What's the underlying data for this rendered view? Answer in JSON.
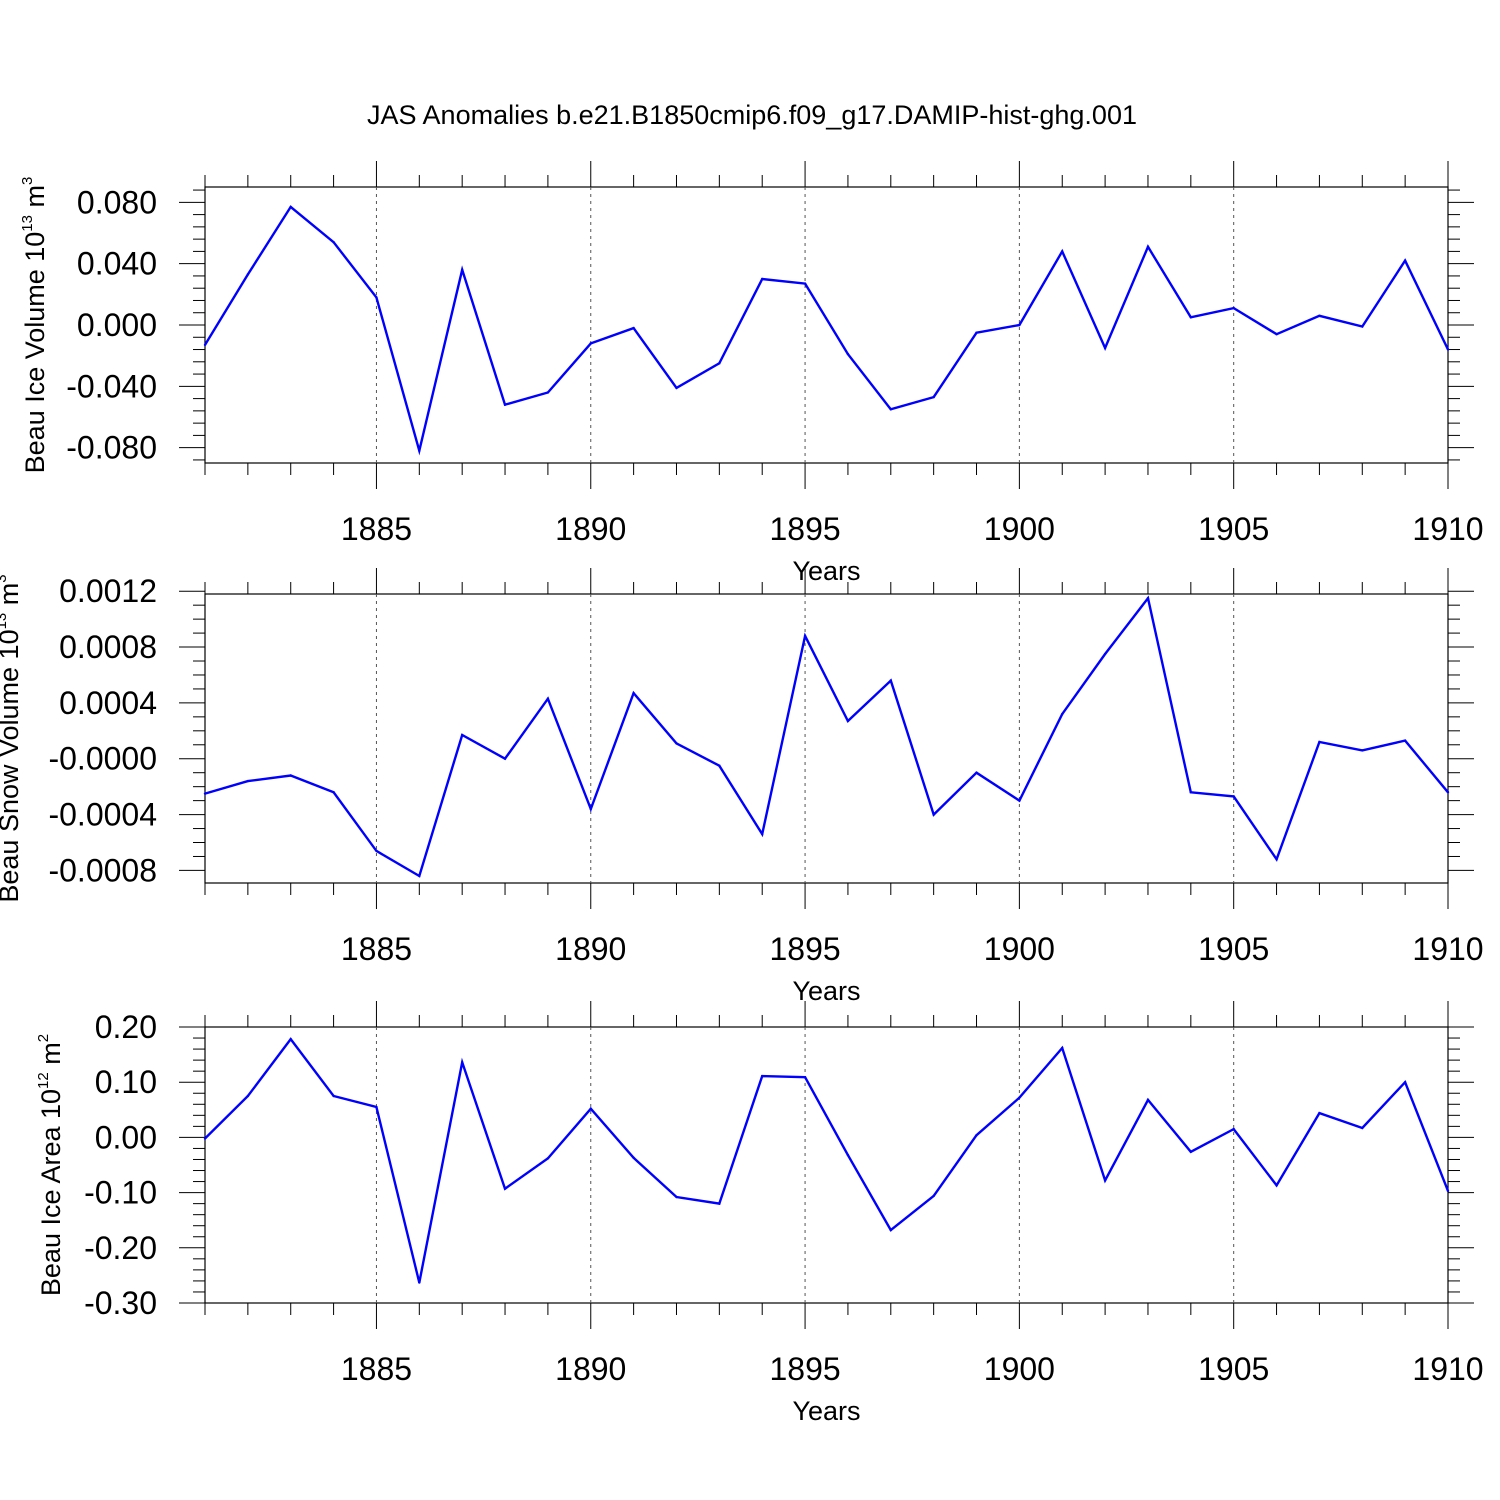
{
  "title": "JAS Anomalies b.e21.B1850cmip6.f09_g17.DAMIP-hist-ghg.001",
  "line_color": "#0000ff",
  "chart_data": [
    {
      "type": "line",
      "ylabel": {
        "main": "Beau Ice Volume 10",
        "exp": "13",
        "unit": " m",
        "unit_exp": "3"
      },
      "xlabel": "Years",
      "xlim": [
        1881,
        1910
      ],
      "ylim": [
        -0.09,
        0.09
      ],
      "yticks": [
        -0.08,
        -0.04,
        0.0,
        0.04,
        0.08
      ],
      "ytick_labels": [
        "-0.080",
        "-0.040",
        "0.000",
        "0.040",
        "0.080"
      ],
      "yminor_step": 0.008,
      "xticks": [
        1885,
        1890,
        1895,
        1900,
        1905,
        1910
      ],
      "xtick_labels": [
        "1885",
        "1890",
        "1895",
        "1900",
        "1905",
        "1910"
      ],
      "grid": "vertical dashed at major x ticks",
      "x": [
        1881,
        1882,
        1883,
        1884,
        1885,
        1886,
        1887,
        1888,
        1889,
        1890,
        1891,
        1892,
        1893,
        1894,
        1895,
        1896,
        1897,
        1898,
        1899,
        1900,
        1901,
        1902,
        1903,
        1904,
        1905,
        1906,
        1907,
        1908,
        1909,
        1910
      ],
      "values": [
        -0.013,
        0.033,
        0.077,
        0.054,
        0.018,
        -0.082,
        0.036,
        -0.052,
        -0.044,
        -0.012,
        -0.002,
        -0.041,
        -0.025,
        0.03,
        0.027,
        -0.019,
        -0.055,
        -0.047,
        -0.005,
        0.0,
        0.048,
        -0.015,
        0.051,
        0.005,
        0.011,
        -0.006,
        0.006,
        -0.001,
        0.042,
        -0.016
      ]
    },
    {
      "type": "line",
      "ylabel": {
        "main": "Beau Snow Volume 10",
        "exp": "13",
        "unit": " m",
        "unit_exp": "3"
      },
      "xlabel": "Years",
      "xlim": [
        1881,
        1910
      ],
      "ylim": [
        -0.00089,
        0.00118
      ],
      "yticks": [
        -0.0008,
        -0.0004,
        0.0,
        0.0004,
        0.0008,
        0.0012
      ],
      "ytick_labels": [
        "-0.0008",
        "-0.0004",
        "-0.0000",
        "0.0004",
        "0.0008",
        "0.0012"
      ],
      "yminor_step": 0.0001,
      "xticks": [
        1885,
        1890,
        1895,
        1900,
        1905,
        1910
      ],
      "xtick_labels": [
        "1885",
        "1890",
        "1895",
        "1900",
        "1905",
        "1910"
      ],
      "grid": "vertical dashed at major x ticks",
      "x": [
        1881,
        1882,
        1883,
        1884,
        1885,
        1886,
        1887,
        1888,
        1889,
        1890,
        1891,
        1892,
        1893,
        1894,
        1895,
        1896,
        1897,
        1898,
        1899,
        1900,
        1901,
        1902,
        1903,
        1904,
        1905,
        1906,
        1907,
        1908,
        1909,
        1910
      ],
      "values": [
        -0.00025,
        -0.00016,
        -0.00012,
        -0.00024,
        -0.00066,
        -0.00084,
        0.00017,
        0.0,
        0.00043,
        -0.00036,
        0.00047,
        0.00011,
        -5e-05,
        -0.00054,
        0.00088,
        0.00027,
        0.00056,
        -0.0004,
        -0.0001,
        -0.0003,
        0.00032,
        0.00075,
        0.00115,
        -0.00024,
        -0.00027,
        -0.00072,
        0.00012,
        6e-05,
        0.00013,
        -0.00024
      ]
    },
    {
      "type": "line",
      "ylabel": {
        "main": "Beau Ice Area 10",
        "exp": "12",
        "unit": " m",
        "unit_exp": "2"
      },
      "xlabel": "Years",
      "xlim": [
        1881,
        1910
      ],
      "ylim": [
        -0.3,
        0.2
      ],
      "yticks": [
        -0.3,
        -0.2,
        -0.1,
        0.0,
        0.1,
        0.2
      ],
      "ytick_labels": [
        "-0.30",
        "-0.20",
        "-0.10",
        "0.00",
        "0.10",
        "0.20"
      ],
      "yminor_step": 0.02,
      "xticks": [
        1885,
        1890,
        1895,
        1900,
        1905,
        1910
      ],
      "xtick_labels": [
        "1885",
        "1890",
        "1895",
        "1900",
        "1905",
        "1910"
      ],
      "grid": "vertical dashed at major x ticks",
      "x": [
        1881,
        1882,
        1883,
        1884,
        1885,
        1886,
        1887,
        1888,
        1889,
        1890,
        1891,
        1892,
        1893,
        1894,
        1895,
        1896,
        1897,
        1898,
        1899,
        1900,
        1901,
        1902,
        1903,
        1904,
        1905,
        1906,
        1907,
        1908,
        1909,
        1910
      ],
      "values": [
        -0.002,
        0.075,
        0.178,
        0.075,
        0.055,
        -0.263,
        0.136,
        -0.093,
        -0.038,
        0.052,
        -0.037,
        -0.108,
        -0.12,
        0.111,
        0.109,
        -0.032,
        -0.168,
        -0.106,
        0.004,
        0.072,
        0.162,
        -0.078,
        0.068,
        -0.026,
        0.015,
        -0.087,
        0.044,
        0.017,
        0.1,
        -0.097
      ]
    }
  ]
}
